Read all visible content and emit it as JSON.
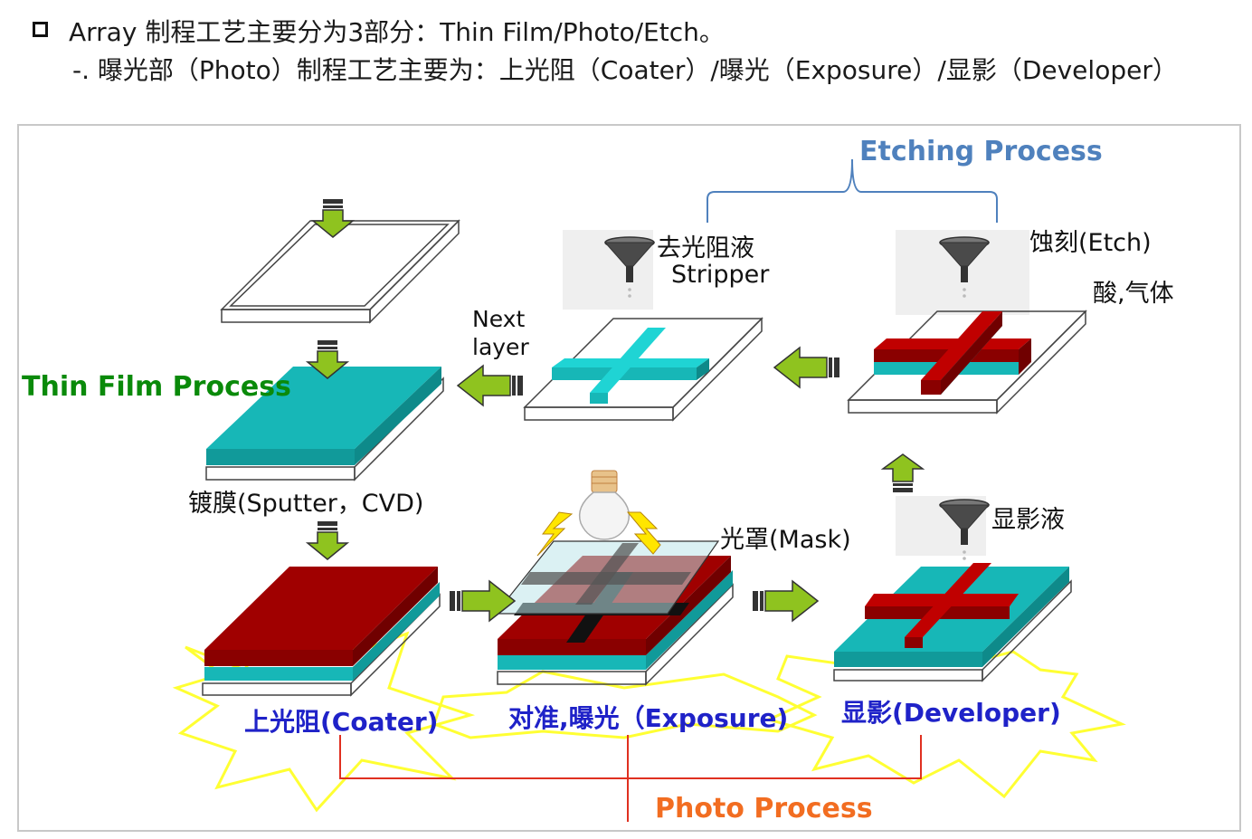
{
  "header": {
    "line1": "Array 制程工艺主要分为3部分：Thin Film/Photo/Etch。",
    "line2": "-. 曝光部（Photo）制程工艺主要为：上光阻（Coater）/曝光（Exposure）/显影（Developer）"
  },
  "labels": {
    "etching_process": "Etching Process",
    "thin_film_process": "Thin Film Process",
    "photo_process": "Photo Process",
    "stripper_cn": "去光阻液",
    "stripper_en": "Stripper",
    "next": "Next",
    "layer": "layer",
    "etch": "蚀刻(Etch)",
    "acid_gas": "酸,气体",
    "deposition": "镀膜(Sputter，CVD)",
    "mask": "光罩(Mask)",
    "developer_liquid": "显影液",
    "coater": "上光阻(Coater)",
    "exposure": "对准,曝光（Exposure)",
    "developer": "显影(Developer)"
  },
  "colors": {
    "etching": "#4f81bd",
    "thin_film": "#0a8a0a",
    "photo": "#f26d21",
    "step_label": "#1f22c8",
    "film": "#17b7b7",
    "resist": "#a00000",
    "arrow": "#8fc31f",
    "burst": "#ffff33",
    "bracket_red": "#e03020"
  },
  "icons": [
    "funnel-icon",
    "light-bulb-icon",
    "lightning-icon",
    "arrow-icon",
    "starburst-icon"
  ]
}
